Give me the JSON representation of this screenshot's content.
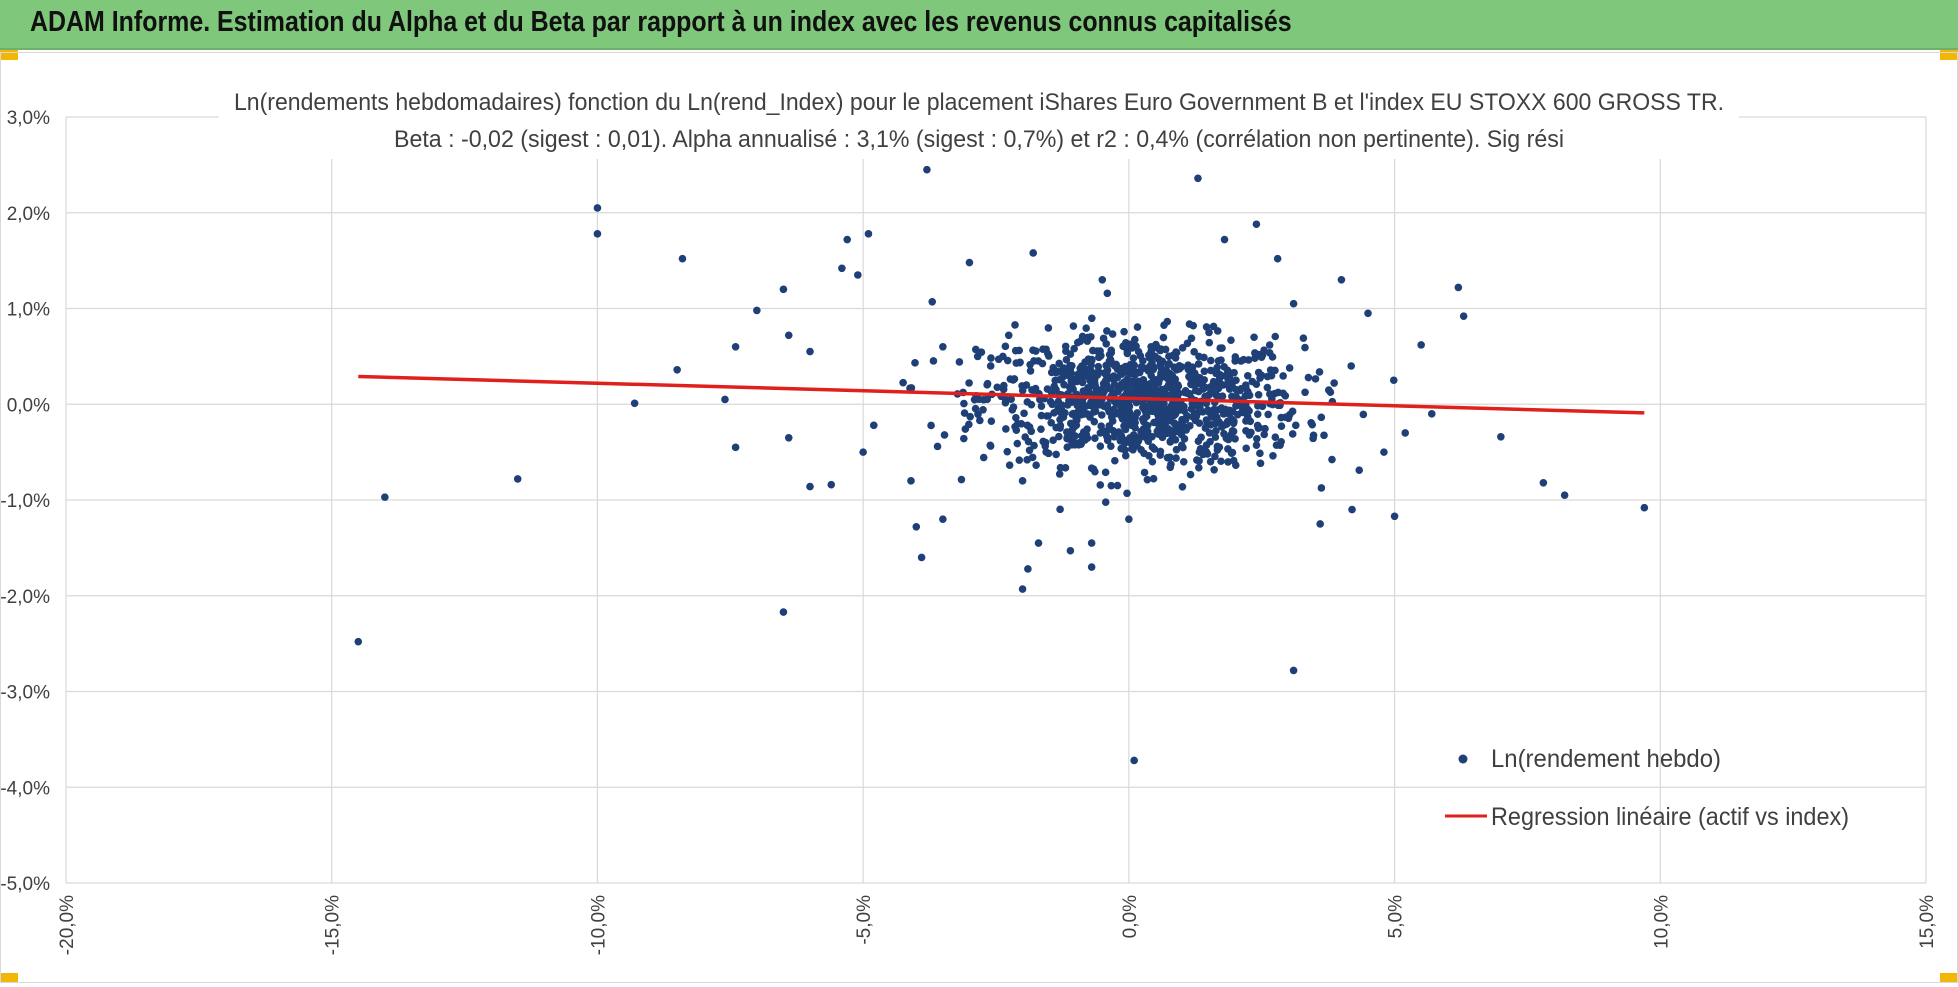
{
  "header": {
    "title": "ADAM Informe. Estimation du Alpha et du Beta par rapport à un index avec les revenus connus capitalisés"
  },
  "colors": {
    "header_bg": "#7fc77a",
    "accent_corner": "#f2b705",
    "points": "#1f3f77",
    "regression": "#e0201c",
    "grid": "#d9d9d9"
  },
  "chart_data": {
    "type": "scatter",
    "title": "Ln(rendements hebdomadaires) fonction du Ln(rend_Index) pour le placement iShares Euro Government B et l'index EU STOXX 600 GROSS TR.",
    "subtitle": "Beta : -0,02 (sigest : 0,01).  Alpha annualisé : 3,1% (sigest : 0,7%) et r2 : 0,4% (corrélation non pertinente). Sig rési",
    "xlabel": "",
    "ylabel": "",
    "xlim": [
      -20,
      15
    ],
    "ylim": [
      -5,
      3
    ],
    "x_ticks": [
      -20,
      -15,
      -10,
      -5,
      0,
      5,
      10,
      15
    ],
    "y_ticks": [
      3,
      2,
      1,
      0,
      -1,
      -2,
      -3,
      -4,
      -5
    ],
    "x_tick_labels": [
      "-20,0%",
      "-15,0%",
      "-10,0%",
      "-5,0%",
      "0,0%",
      "5,0%",
      "10,0%",
      "15,0%"
    ],
    "y_tick_labels": [
      "3,0%",
      "2,0%",
      "1,0%",
      "0,0%",
      "-1,0%",
      "-2,0%",
      "-3,0%",
      "-4,0%",
      "-5,0%"
    ],
    "grid": true,
    "legend_position": "bottom-right",
    "series": [
      {
        "name": "Ln(rendement hebdo)",
        "kind": "scatter",
        "note": "dense central cluster of roughly 1000 weekly points (x mostly -3%..3%, y mostly -1%..1%) plus the listed outliers",
        "points": [
          [
            -14.5,
            -2.48
          ],
          [
            -14.0,
            -0.97
          ],
          [
            -11.5,
            -0.78
          ],
          [
            -10.0,
            2.05
          ],
          [
            -10.0,
            1.78
          ],
          [
            -9.3,
            0.01
          ],
          [
            -8.5,
            0.36
          ],
          [
            -8.4,
            1.52
          ],
          [
            -7.6,
            0.05
          ],
          [
            -7.4,
            0.6
          ],
          [
            -7.4,
            -0.45
          ],
          [
            -7.0,
            0.98
          ],
          [
            -6.5,
            1.2
          ],
          [
            -6.5,
            -2.17
          ],
          [
            -6.4,
            -0.35
          ],
          [
            -6.4,
            0.72
          ],
          [
            -6.0,
            0.55
          ],
          [
            -6.0,
            -0.86
          ],
          [
            -5.6,
            -0.84
          ],
          [
            -5.4,
            1.42
          ],
          [
            -5.3,
            1.72
          ],
          [
            -5.1,
            1.35
          ],
          [
            -5.0,
            -0.5
          ],
          [
            -4.9,
            1.78
          ],
          [
            -4.8,
            -0.22
          ],
          [
            -4.1,
            -0.8
          ],
          [
            -4.0,
            -1.28
          ],
          [
            -3.9,
            -1.6
          ],
          [
            -3.8,
            2.45
          ],
          [
            -3.7,
            1.07
          ],
          [
            -3.6,
            -0.44
          ],
          [
            -3.5,
            -1.2
          ],
          [
            -3.5,
            0.6
          ],
          [
            -3.0,
            1.48
          ],
          [
            -2.6,
            0.4
          ],
          [
            -2.0,
            -1.93
          ],
          [
            -2.0,
            -0.8
          ],
          [
            -1.9,
            -1.72
          ],
          [
            -1.8,
            1.58
          ],
          [
            -1.7,
            -1.45
          ],
          [
            -1.1,
            -1.53
          ],
          [
            -0.7,
            -1.45
          ],
          [
            -0.7,
            -1.7
          ],
          [
            -0.5,
            1.3
          ],
          [
            0.0,
            -1.2
          ],
          [
            0.1,
            -3.72
          ],
          [
            1.3,
            2.36
          ],
          [
            1.8,
            1.72
          ],
          [
            2.4,
            1.88
          ],
          [
            2.2,
            0.0
          ],
          [
            2.8,
            1.52
          ],
          [
            3.1,
            -2.78
          ],
          [
            3.1,
            1.05
          ],
          [
            3.6,
            -1.25
          ],
          [
            4.0,
            1.3
          ],
          [
            4.2,
            -1.1
          ],
          [
            4.5,
            0.95
          ],
          [
            4.8,
            -0.5
          ],
          [
            5.0,
            -1.17
          ],
          [
            5.2,
            -0.3
          ],
          [
            5.5,
            0.62
          ],
          [
            5.7,
            -0.1
          ],
          [
            6.2,
            1.22
          ],
          [
            6.3,
            0.92
          ],
          [
            7.0,
            -0.34
          ],
          [
            7.8,
            -0.82
          ],
          [
            8.2,
            -0.95
          ],
          [
            9.7,
            -1.08
          ]
        ]
      },
      {
        "name": "Regression linéaire (actif vs index)",
        "kind": "line",
        "points": [
          [
            -14.5,
            0.29
          ],
          [
            9.7,
            -0.09
          ]
        ]
      }
    ]
  }
}
